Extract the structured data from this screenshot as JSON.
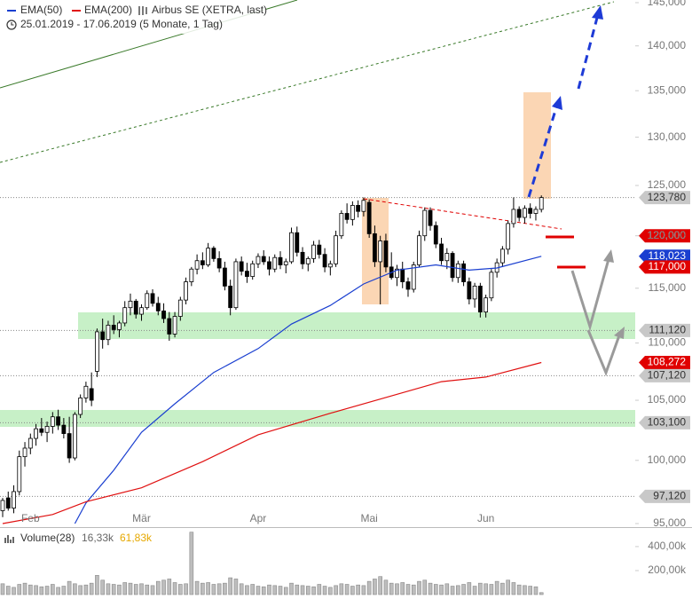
{
  "chart_data": {
    "type": "candlestick",
    "title": "Airbus SE (XETRA, last)",
    "subtitle": "25.01.2019 - 17.06.2019 (5 Monate, 1 Tag)",
    "log_scale": true,
    "up_color": "#ffffff",
    "down_color": "#000000",
    "ylim": [
      95,
      145
    ],
    "yticks": [
      {
        "value": 95,
        "label": "95,000"
      },
      {
        "value": 100,
        "label": "100,000"
      },
      {
        "value": 105,
        "label": "105,000"
      },
      {
        "value": 110,
        "label": "110,000"
      },
      {
        "value": 115,
        "label": "115,000"
      },
      {
        "value": 120,
        "label": "120,000"
      },
      {
        "value": 125,
        "label": "125,000"
      },
      {
        "value": 130,
        "label": "130,000"
      },
      {
        "value": 135,
        "label": "135,000"
      },
      {
        "value": 140,
        "label": "140,000"
      },
      {
        "value": 145,
        "label": "145,000"
      }
    ],
    "categories": [
      null,
      null,
      null,
      null,
      null,
      "Feb",
      null,
      null,
      null,
      null,
      null,
      null,
      null,
      null,
      null,
      null,
      null,
      null,
      null,
      null,
      null,
      null,
      null,
      null,
      null,
      "Mär",
      null,
      null,
      null,
      null,
      null,
      null,
      null,
      null,
      null,
      null,
      null,
      null,
      null,
      null,
      null,
      null,
      null,
      null,
      null,
      null,
      "Apr",
      null,
      null,
      null,
      null,
      null,
      null,
      null,
      null,
      null,
      null,
      null,
      null,
      null,
      null,
      null,
      null,
      null,
      null,
      null,
      "Mai",
      null,
      null,
      null,
      null,
      null,
      null,
      null,
      null,
      null,
      null,
      null,
      null,
      null,
      null,
      null,
      null,
      null,
      null,
      null,
      null,
      "Jun",
      null,
      null,
      null,
      null,
      null,
      null,
      null,
      null,
      null,
      null
    ],
    "open": [
      96,
      97,
      96.2,
      97.5,
      100.3,
      101,
      101.8,
      102.6,
      102.3,
      102.8,
      103.6,
      102.9,
      102.2,
      100.2,
      103.8,
      105.2,
      106,
      107.5,
      111,
      110.3,
      111.6,
      111.2,
      111.8,
      113.2,
      113.8,
      112.6,
      113.2,
      114.5,
      113.6,
      112.9,
      112.2,
      110.8,
      112.4,
      113.9,
      115.6,
      116.8,
      117.6,
      117.2,
      118.8,
      117.8,
      116.9,
      115.2,
      113.2,
      117.5,
      116.6,
      116.1,
      117.3,
      118,
      117.5,
      116.8,
      117.9,
      117.2,
      117.5,
      120.3,
      118.4,
      117.3,
      117.8,
      119.1,
      118.2,
      117,
      117.3,
      120,
      122.2,
      121.6,
      123,
      122.4,
      123.3,
      120.2,
      117.5,
      119.5,
      117,
      116,
      116.8,
      115.6,
      114.9,
      117.2,
      120,
      122.5,
      121,
      119.2,
      117.6,
      118.3,
      116,
      117.3,
      115.6,
      114,
      115.2,
      112.8,
      114.1,
      116.5,
      117.4,
      118.7,
      121.2,
      122.6,
      121.8,
      122.7,
      122.2,
      122.6
    ],
    "high": [
      97,
      97.5,
      98,
      100.8,
      101.5,
      102.2,
      103,
      103.5,
      103.2,
      104,
      104.2,
      103.5,
      103.6,
      104,
      105.5,
      106.6,
      107.4,
      111.3,
      112.2,
      112,
      112.5,
      112,
      113.8,
      114.5,
      114,
      113.5,
      114.8,
      114.9,
      114.2,
      113.6,
      112.8,
      112.8,
      114.2,
      116,
      117,
      118.2,
      118.4,
      119.3,
      119,
      118.5,
      117.5,
      115.8,
      117.8,
      118,
      117.4,
      117.6,
      118.3,
      118.6,
      118,
      118.2,
      118.5,
      117.8,
      120.8,
      120.9,
      118.9,
      118,
      119.5,
      119.6,
      118.8,
      117.6,
      120.5,
      122.5,
      123.2,
      123.4,
      123.5,
      123.8,
      123.6,
      121,
      120,
      120.2,
      118.4,
      117.2,
      117.5,
      116,
      117.5,
      120.5,
      122.8,
      122.8,
      121.4,
      119.8,
      118.8,
      118.5,
      117.6,
      117.6,
      116,
      115.5,
      115.5,
      114.4,
      116.8,
      117.8,
      119,
      121.5,
      123.8,
      122.9,
      123,
      123.2,
      122.9,
      124
    ],
    "low": [
      95.5,
      96,
      95.8,
      97.2,
      99.5,
      100.5,
      101.2,
      102,
      101.5,
      102.2,
      102.5,
      101.8,
      99.8,
      100,
      103.5,
      104.8,
      104.5,
      107,
      109.5,
      109.8,
      110.8,
      110.5,
      111.5,
      112.5,
      112.2,
      112,
      113,
      113.3,
      112.5,
      111.8,
      110.2,
      110.5,
      112,
      113.5,
      115.2,
      116.3,
      116.8,
      117,
      117.5,
      116.5,
      114.8,
      112.5,
      113,
      116.2,
      115.5,
      115.8,
      116.9,
      117.2,
      116.2,
      116.5,
      116.8,
      116.4,
      117.3,
      118,
      116.8,
      116.6,
      117.4,
      117.8,
      116.5,
      116.2,
      117,
      119.7,
      121.2,
      121,
      121.8,
      121.9,
      119.8,
      117,
      113.5,
      116.5,
      115.8,
      115.2,
      115,
      114.2,
      114.6,
      117,
      119.5,
      120.5,
      118.8,
      117.2,
      116.8,
      115.6,
      115.5,
      115.2,
      113.5,
      113.2,
      112.3,
      112.3,
      113.8,
      116,
      117,
      118.2,
      120.8,
      121.4,
      121.2,
      121.7,
      121.5,
      122.3
    ],
    "close": [
      96.8,
      96.2,
      97.5,
      100.3,
      101,
      101.8,
      102.6,
      102.3,
      102.8,
      103.6,
      102.9,
      102.2,
      100.2,
      103.8,
      105.2,
      106.2,
      105,
      111,
      110.3,
      111.6,
      111.2,
      111.8,
      113.2,
      113.8,
      112.6,
      113.2,
      114.5,
      113.6,
      112.9,
      112.2,
      110.8,
      112.4,
      113.9,
      115.6,
      116.8,
      117.6,
      117.2,
      118.8,
      117.8,
      116.9,
      115.2,
      113.2,
      117.5,
      116.6,
      116.1,
      117.3,
      118,
      117.5,
      116.8,
      117.9,
      117.2,
      117.5,
      120.3,
      118.4,
      117.3,
      117.8,
      119.1,
      118.2,
      117,
      117.3,
      120,
      122.2,
      121.6,
      123,
      122.4,
      123.5,
      120.2,
      117.5,
      119.5,
      117,
      116,
      116.8,
      115.6,
      114.9,
      117.2,
      120,
      122.5,
      121,
      119.2,
      117.6,
      118.3,
      116,
      117.3,
      115.6,
      114,
      115.2,
      112.8,
      114.1,
      116.5,
      117.4,
      118.7,
      121.2,
      122.6,
      121.8,
      122.7,
      122.2,
      122.6,
      123.78
    ],
    "series": [
      {
        "name": "EMA(50)",
        "color": "#1a3fd0",
        "x": [
          13,
          15,
          20,
          25,
          31,
          38,
          46,
          52,
          59,
          65,
          71,
          78,
          84,
          89,
          97
        ],
        "values": [
          95,
          96.6,
          99.2,
          102.3,
          104.7,
          107.4,
          109.5,
          111.7,
          113.4,
          115.4,
          116.7,
          117.2,
          116.7,
          116.9,
          118.023
        ]
      },
      {
        "name": "EMA(200)",
        "color": "#e01010",
        "x": [
          0,
          9,
          15,
          25,
          36,
          46,
          59,
          68,
          79,
          87,
          97
        ],
        "values": [
          95,
          95.7,
          96.7,
          97.8,
          99.9,
          102.1,
          103.9,
          105.1,
          106.6,
          107,
          108.272
        ]
      }
    ],
    "levels": [
      {
        "value": 123.78,
        "label": "123,780",
        "color": "#c8c8c8",
        "text_color": "#333333",
        "line": true
      },
      {
        "value": 120,
        "label": "120,000",
        "color": "#e00000",
        "text_color": "#ffffff",
        "line": false
      },
      {
        "value": 118.023,
        "label": "118,023",
        "color": "#1a3fd0",
        "text_color": "#ffffff",
        "line": false
      },
      {
        "value": 117,
        "label": "117,000",
        "color": "#e00000",
        "text_color": "#ffffff",
        "line": false
      },
      {
        "value": 111.12,
        "label": "111,120",
        "color": "#c8c8c8",
        "text_color": "#333333",
        "line": true
      },
      {
        "value": 108.272,
        "label": "108,272",
        "color": "#e00000",
        "text_color": "#ffffff",
        "line": false
      },
      {
        "value": 107.12,
        "label": "107,120",
        "color": "#c8c8c8",
        "text_color": "#333333",
        "line": true
      },
      {
        "value": 103.1,
        "label": "103,100",
        "color": "#c8c8c8",
        "text_color": "#333333",
        "line": true
      },
      {
        "value": 97.12,
        "label": "97,120",
        "color": "#c8c8c8",
        "text_color": "#333333",
        "line": true
      }
    ],
    "volume": {
      "name": "Volume(28)",
      "readout": [
        "16,33k",
        "61,83k"
      ],
      "readout_colors": [
        "#666666",
        "#e6a800"
      ],
      "color": "#bdbdbd",
      "ylim": [
        0,
        540
      ],
      "yticks": [
        {
          "value": 200,
          "label": "200,00k"
        },
        {
          "value": 400,
          "label": "400,00k"
        }
      ],
      "values": [
        90,
        70,
        60,
        85,
        95,
        80,
        75,
        65,
        70,
        85,
        60,
        70,
        110,
        90,
        75,
        80,
        95,
        160,
        120,
        90,
        85,
        80,
        100,
        95,
        85,
        90,
        80,
        75,
        110,
        120,
        130,
        100,
        85,
        90,
        520,
        110,
        95,
        100,
        85,
        90,
        95,
        140,
        130,
        90,
        75,
        85,
        70,
        65,
        80,
        75,
        70,
        60,
        95,
        80,
        75,
        70,
        65,
        85,
        70,
        60,
        75,
        90,
        85,
        70,
        80,
        75,
        110,
        130,
        150,
        120,
        95,
        90,
        100,
        85,
        80,
        110,
        120,
        95,
        85,
        80,
        90,
        70,
        75,
        85,
        100,
        70,
        95,
        90,
        85,
        110,
        95,
        120,
        100,
        80,
        75,
        70,
        65,
        16.33
      ]
    }
  }
}
